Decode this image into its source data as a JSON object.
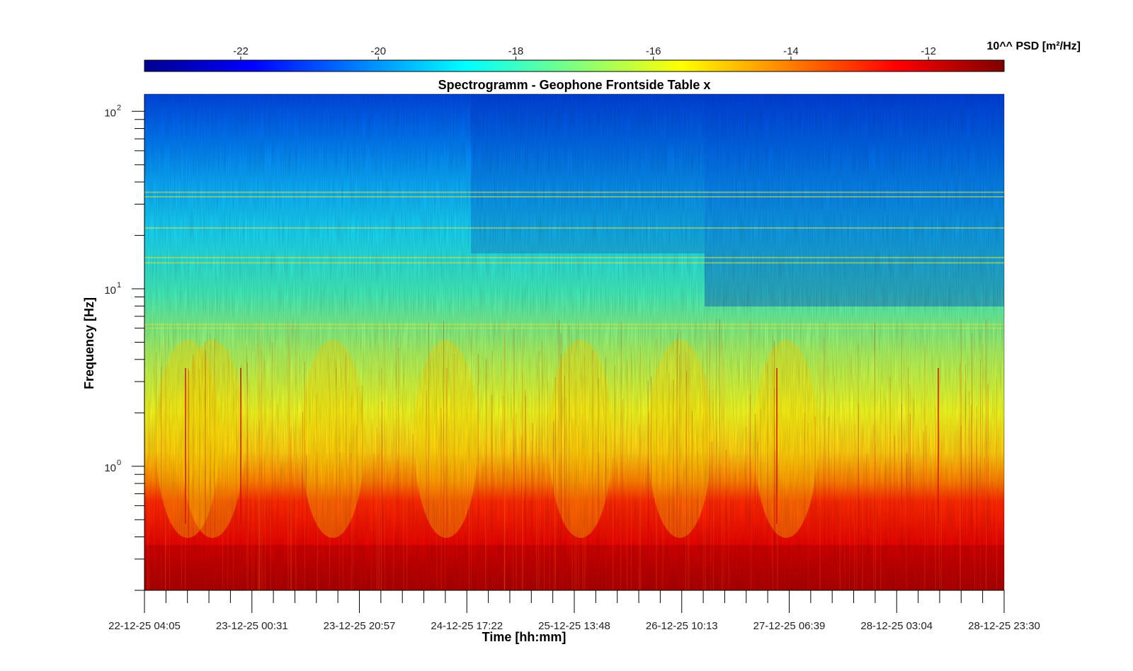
{
  "chart_data": {
    "type": "heatmap",
    "title": "Spectrogramm - Geophone Frontside Table x",
    "xlabel": "Time [hh:mm]",
    "ylabel": "Frequency [Hz]",
    "y_scale": "log",
    "ylim": [
      0.2,
      125
    ],
    "y_major_ticks": [
      {
        "value": 1,
        "mantissa": "10",
        "exponent": "0"
      },
      {
        "value": 10,
        "mantissa": "10",
        "exponent": "1"
      },
      {
        "value": 100,
        "mantissa": "10",
        "exponent": "2"
      }
    ],
    "x_ticks": [
      "22-12-25 04:05",
      "23-12-25 00:31",
      "23-12-25 20:57",
      "24-12-25 17:22",
      "25-12-25 13:48",
      "26-12-25 10:13",
      "27-12-25 06:39",
      "28-12-25 03:04",
      "28-12-25 23:30"
    ],
    "colorbar": {
      "label": "10^^ PSD [m²/Hz]",
      "range": [
        -23.4,
        -10.9
      ],
      "ticks": [
        "-22",
        "-20",
        "-18",
        "-16",
        "-14",
        "-12"
      ],
      "tick_values": [
        -22,
        -20,
        -18,
        -16,
        -14,
        -12
      ],
      "colormap": "jet",
      "colors": [
        "#00008f",
        "#0000ff",
        "#00ffff",
        "#ffff00",
        "#ff0000",
        "#800000"
      ]
    },
    "narrowband_lines_hz": [
      6.0,
      6.3,
      14.0,
      15.0,
      22.0,
      33.0,
      35.0
    ]
  }
}
